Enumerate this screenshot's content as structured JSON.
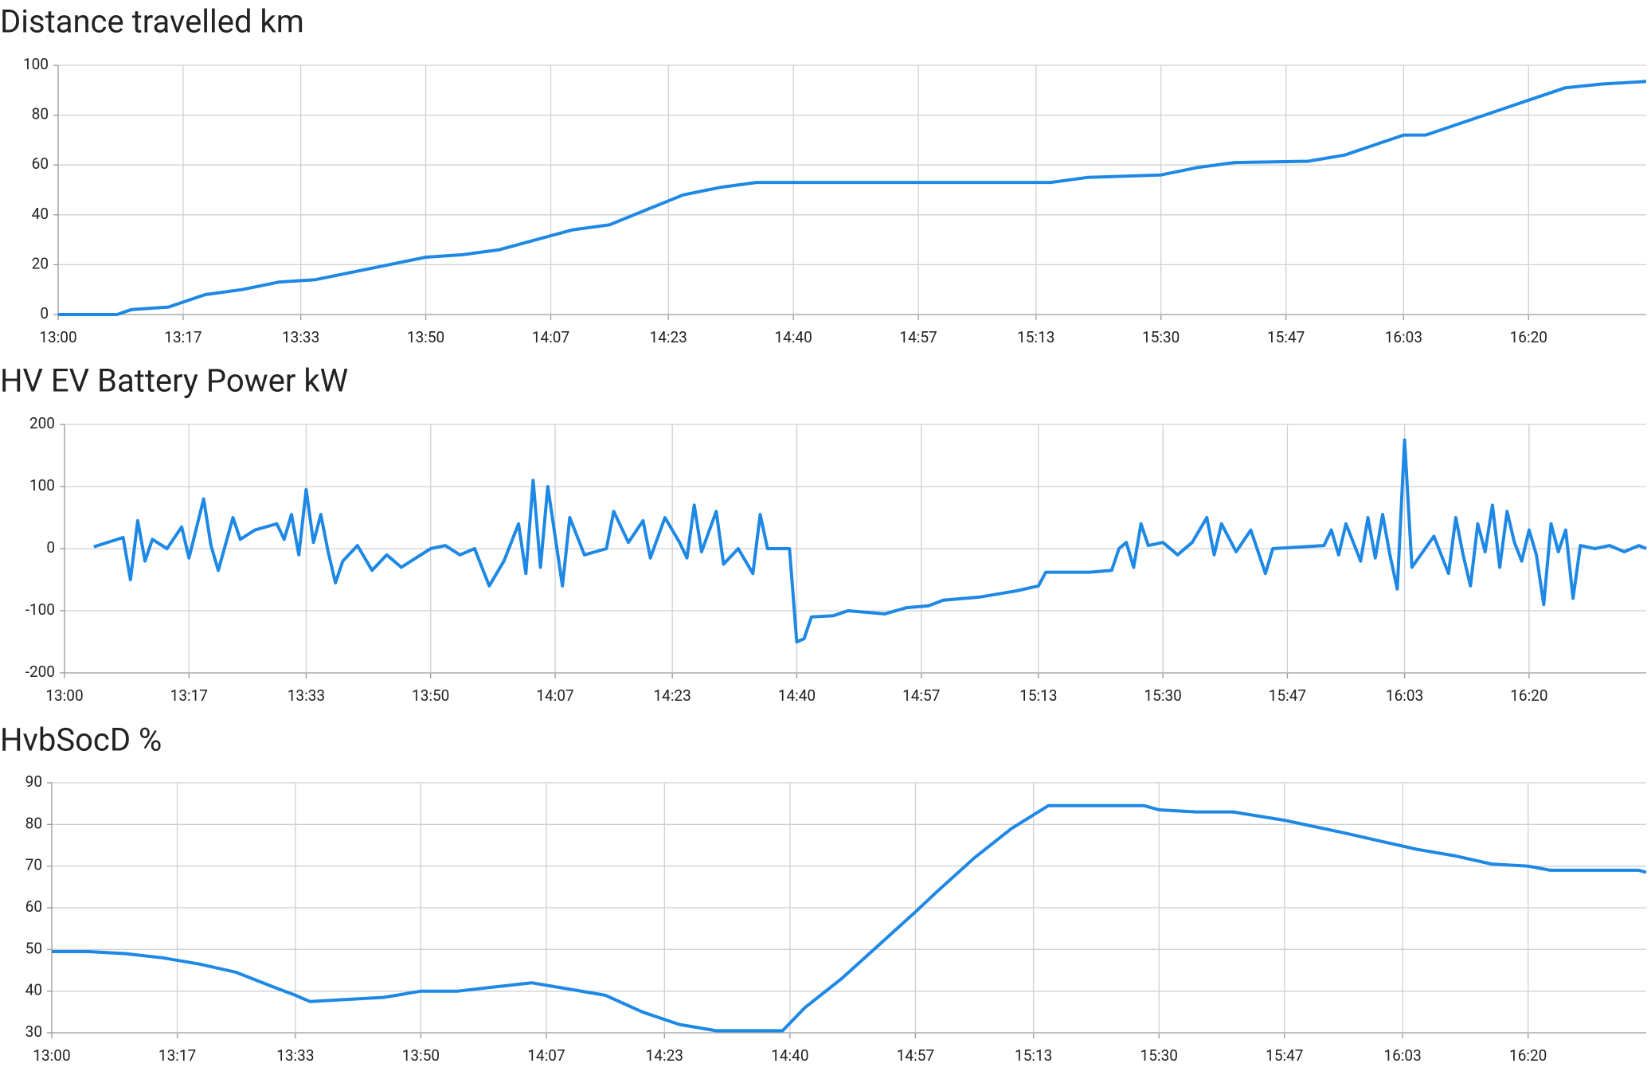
{
  "chart_data": [
    {
      "type": "line",
      "title": "Distance travelled km",
      "color": "#1e88e5",
      "grid": true,
      "x": [
        "13:00",
        "13:08",
        "13:10",
        "13:15",
        "13:20",
        "13:25",
        "13:30",
        "13:35",
        "13:40",
        "13:45",
        "13:50",
        "13:55",
        "14:00",
        "14:05",
        "14:10",
        "14:15",
        "14:20",
        "14:25",
        "14:30",
        "14:35",
        "14:40",
        "15:00",
        "15:15",
        "15:20",
        "15:30",
        "15:35",
        "15:40",
        "15:50",
        "15:55",
        "16:00",
        "16:03",
        "16:06",
        "16:10",
        "16:15",
        "16:20",
        "16:25",
        "16:30",
        "16:36"
      ],
      "values": [
        0,
        0,
        2,
        3,
        8,
        10,
        13,
        14,
        17,
        20,
        23,
        24,
        26,
        30,
        34,
        36,
        42,
        48,
        51,
        53,
        53,
        53,
        53,
        55,
        56,
        59,
        61,
        61.5,
        64,
        69,
        72,
        72,
        76,
        81,
        86,
        91,
        92.5,
        93.5
      ],
      "xlim": [
        "13:00",
        "16:36"
      ],
      "xticks": [
        "13:00",
        "13:17",
        "13:33",
        "13:50",
        "14:07",
        "14:23",
        "14:40",
        "14:57",
        "15:13",
        "15:30",
        "15:47",
        "16:03",
        "16:20"
      ],
      "ylim": [
        0,
        100
      ],
      "yticks": [
        0,
        20,
        40,
        60,
        80,
        100
      ]
    },
    {
      "type": "line",
      "title": "HV EV Battery Power kW",
      "color": "#1e88e5",
      "grid": true,
      "x": [
        "13:04",
        "13:08",
        "13:09",
        "13:10",
        "13:11",
        "13:12",
        "13:14",
        "13:16",
        "13:17",
        "13:19",
        "13:20",
        "13:21",
        "13:23",
        "13:24",
        "13:26",
        "13:29",
        "13:30",
        "13:31",
        "13:32",
        "13:33",
        "13:34",
        "13:35",
        "13:36",
        "13:37",
        "13:38",
        "13:40",
        "13:42",
        "13:44",
        "13:46",
        "13:48",
        "13:50",
        "13:52",
        "13:54",
        "13:56",
        "13:58",
        "14:00",
        "14:02",
        "14:03",
        "14:04",
        "14:05",
        "14:06",
        "14:08",
        "14:09",
        "14:11",
        "14:14",
        "14:15",
        "14:17",
        "14:19",
        "14:20",
        "14:22",
        "14:24",
        "14:25",
        "14:26",
        "14:27",
        "14:29",
        "14:30",
        "14:32",
        "14:34",
        "14:35",
        "14:36",
        "14:39",
        "14:40",
        "14:41",
        "14:42",
        "14:45",
        "14:47",
        "14:52",
        "14:55",
        "14:58",
        "15:00",
        "15:05",
        "15:10",
        "15:13",
        "15:14",
        "15:20",
        "15:23",
        "15:24",
        "15:25",
        "15:26",
        "15:27",
        "15:28",
        "15:30",
        "15:32",
        "15:34",
        "15:36",
        "15:37",
        "15:38",
        "15:40",
        "15:42",
        "15:44",
        "15:45",
        "15:52",
        "15:53",
        "15:54",
        "15:55",
        "15:56",
        "15:57",
        "15:58",
        "15:59",
        "16:00",
        "16:01",
        "16:02",
        "16:03",
        "16:04",
        "16:07",
        "16:09",
        "16:10",
        "16:11",
        "16:12",
        "16:13",
        "16:14",
        "16:15",
        "16:16",
        "16:17",
        "16:18",
        "16:19",
        "16:20",
        "16:21",
        "16:22",
        "16:23",
        "16:24",
        "16:25",
        "16:26",
        "16:27",
        "16:29",
        "16:31",
        "16:33",
        "16:35",
        "16:36"
      ],
      "values": [
        3,
        18,
        -50,
        45,
        -20,
        15,
        0,
        35,
        -15,
        80,
        5,
        -35,
        50,
        15,
        30,
        40,
        15,
        55,
        -10,
        95,
        10,
        55,
        -5,
        -55,
        -20,
        5,
        -35,
        -10,
        -30,
        -15,
        0,
        5,
        -10,
        0,
        -60,
        -20,
        40,
        -40,
        110,
        -30,
        100,
        -60,
        50,
        -10,
        0,
        60,
        10,
        45,
        -15,
        50,
        10,
        -15,
        70,
        -5,
        60,
        -25,
        0,
        -40,
        55,
        0,
        0,
        -150,
        -145,
        -110,
        -108,
        -100,
        -105,
        -95,
        -92,
        -83,
        -78,
        -68,
        -60,
        -38,
        -38,
        -35,
        0,
        10,
        -30,
        40,
        5,
        10,
        -10,
        10,
        50,
        -10,
        40,
        -5,
        30,
        -40,
        0,
        5,
        30,
        -10,
        40,
        10,
        -20,
        50,
        -15,
        55,
        -10,
        -65,
        175,
        -30,
        20,
        -40,
        50,
        -10,
        -60,
        40,
        -5,
        70,
        -30,
        60,
        10,
        -20,
        30,
        -10,
        -90,
        40,
        -5,
        30,
        -80,
        5,
        0,
        5,
        -5,
        5,
        0
      ],
      "xlim": [
        "13:00",
        "16:36"
      ],
      "xticks": [
        "13:00",
        "13:17",
        "13:33",
        "13:50",
        "14:07",
        "14:23",
        "14:40",
        "14:57",
        "15:13",
        "15:30",
        "15:47",
        "16:03",
        "16:20"
      ],
      "ylim": [
        -200,
        200
      ],
      "yticks": [
        -200,
        -100,
        0,
        100,
        200
      ]
    },
    {
      "type": "line",
      "title": "HvbSocD %",
      "color": "#1e88e5",
      "grid": true,
      "x": [
        "13:00",
        "13:05",
        "13:10",
        "13:15",
        "13:20",
        "13:25",
        "13:30",
        "13:33",
        "13:35",
        "13:40",
        "13:45",
        "13:50",
        "13:55",
        "14:00",
        "14:05",
        "14:10",
        "14:15",
        "14:20",
        "14:25",
        "14:30",
        "14:35",
        "14:39",
        "14:42",
        "14:47",
        "14:52",
        "14:57",
        "15:00",
        "15:05",
        "15:10",
        "15:15",
        "15:20",
        "15:28",
        "15:30",
        "15:35",
        "15:40",
        "15:47",
        "15:55",
        "16:00",
        "16:05",
        "16:10",
        "16:15",
        "16:20",
        "16:23",
        "16:35",
        "16:36"
      ],
      "values": [
        49.5,
        49.5,
        49,
        48,
        46.5,
        44.5,
        41,
        39,
        37.5,
        38,
        38.5,
        40,
        40,
        41,
        42,
        40.5,
        39,
        35,
        32,
        30.5,
        30.5,
        30.5,
        36,
        43,
        51,
        59,
        64,
        72,
        79,
        84.5,
        84.5,
        84.5,
        83.5,
        83,
        83,
        81,
        78,
        76,
        74,
        72.5,
        70.5,
        70,
        69,
        69,
        68.5
      ],
      "xlim": [
        "13:00",
        "16:36"
      ],
      "xticks": [
        "13:00",
        "13:17",
        "13:33",
        "13:50",
        "14:07",
        "14:23",
        "14:40",
        "14:57",
        "15:13",
        "15:30",
        "15:47",
        "16:03",
        "16:20"
      ],
      "ylim": [
        30,
        90
      ],
      "yticks": [
        30,
        40,
        50,
        60,
        70,
        80,
        90
      ]
    }
  ]
}
